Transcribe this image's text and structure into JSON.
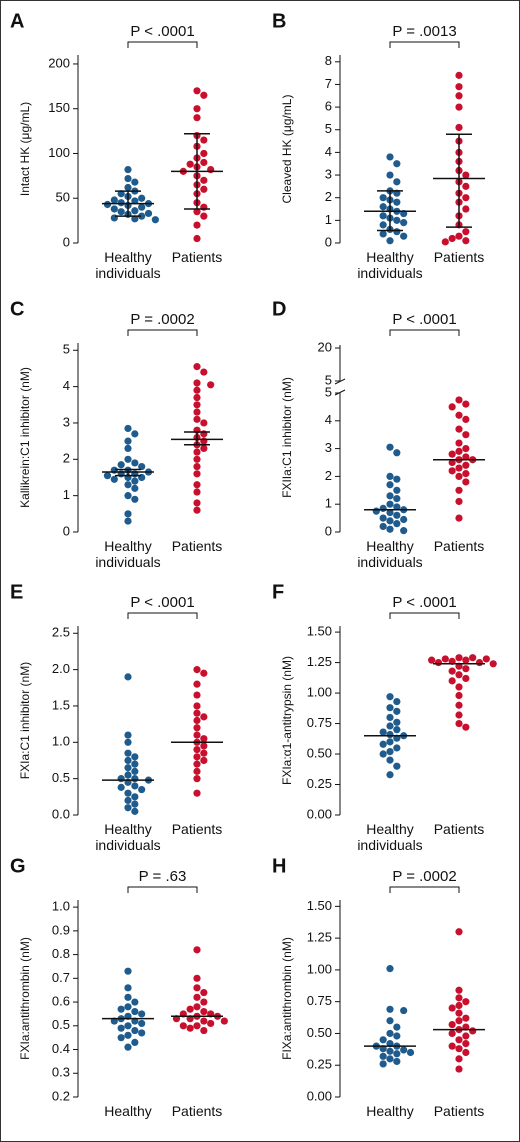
{
  "chart_data": [
    {
      "type": "dot",
      "panel": "A",
      "ylabel": "Intact HK (μg/mL)",
      "annotation": "P < .0001",
      "ylim": [
        0,
        210
      ],
      "yticks": [
        0,
        50,
        100,
        150,
        200
      ],
      "groups": [
        {
          "name": "Healthy individuals",
          "color": "#1f5b8c",
          "values": [
            82,
            72,
            68,
            62,
            58,
            55,
            52,
            50,
            48,
            47,
            45,
            44,
            43,
            42,
            40,
            38,
            36,
            35,
            33,
            32,
            30,
            28,
            27,
            26
          ],
          "center": 44,
          "whisker": [
            30,
            58
          ]
        },
        {
          "name": "Patients",
          "color": "#c8102e",
          "values": [
            170,
            165,
            150,
            140,
            120,
            115,
            108,
            100,
            95,
            90,
            88,
            85,
            82,
            80,
            75,
            70,
            65,
            60,
            55,
            45,
            40,
            35,
            30,
            20,
            5
          ],
          "center": 80,
          "whisker": [
            38,
            122
          ]
        }
      ]
    },
    {
      "type": "dot",
      "panel": "B",
      "ylabel": "Cleaved HK (μg/mL)",
      "annotation": "P = .0013",
      "ylim": [
        0,
        8.3
      ],
      "yticks": [
        0,
        1,
        2,
        3,
        4,
        5,
        6,
        7,
        8
      ],
      "groups": [
        {
          "name": "Healthy individuals",
          "color": "#1f5b8c",
          "values": [
            3.8,
            3.5,
            3.0,
            2.7,
            2.3,
            2.2,
            2.0,
            1.9,
            1.8,
            1.6,
            1.5,
            1.4,
            1.3,
            1.2,
            1.1,
            1.0,
            0.9,
            0.8,
            0.6,
            0.5,
            0.4,
            0.3,
            0.1
          ],
          "center": 1.4,
          "whisker": [
            0.55,
            2.3
          ]
        },
        {
          "name": "Patients",
          "color": "#c8102e",
          "values": [
            7.4,
            6.9,
            6.5,
            6.0,
            5.1,
            4.5,
            4.0,
            3.6,
            3.2,
            3.0,
            2.7,
            2.5,
            2.2,
            2.0,
            1.8,
            1.5,
            1.2,
            0.8,
            0.5,
            0.3,
            0.2,
            0.1,
            0.05
          ],
          "center": 2.85,
          "whisker": [
            0.7,
            4.8
          ]
        }
      ]
    },
    {
      "type": "dot",
      "panel": "C",
      "ylabel": "Kallikrein:C1 inhibitor (nM)",
      "annotation": "P = .0002",
      "ylim": [
        0,
        5.2
      ],
      "yticks": [
        0,
        1,
        2,
        3,
        4,
        5
      ],
      "groups": [
        {
          "name": "Healthy individuals",
          "color": "#1f5b8c",
          "values": [
            2.85,
            2.7,
            2.5,
            2.3,
            2.0,
            1.9,
            1.85,
            1.8,
            1.7,
            1.7,
            1.65,
            1.6,
            1.6,
            1.55,
            1.5,
            1.5,
            1.45,
            1.4,
            1.3,
            1.2,
            1.0,
            0.9,
            0.5,
            0.3
          ],
          "center": 1.65,
          "whisker": [
            1.55,
            1.72
          ]
        },
        {
          "name": "Patients",
          "color": "#c8102e",
          "values": [
            4.55,
            4.4,
            4.1,
            4.05,
            3.9,
            3.7,
            3.5,
            3.3,
            3.1,
            3.0,
            2.8,
            2.7,
            2.6,
            2.5,
            2.4,
            2.3,
            2.2,
            2.0,
            1.8,
            1.6,
            1.3,
            1.1,
            0.8,
            0.6
          ],
          "center": 2.55,
          "whisker": [
            2.4,
            2.75
          ]
        }
      ]
    },
    {
      "type": "dot",
      "panel": "D",
      "ylabel": "FXIIa:C1 inhibitor (nM)",
      "annotation": "P < .0001",
      "ylim": [
        0,
        5
      ],
      "yticks": [
        0,
        1,
        2,
        3,
        4,
        5
      ],
      "upper_ylim": [
        5,
        20
      ],
      "upper_yticks": [
        5,
        20
      ],
      "groups": [
        {
          "name": "Healthy individuals",
          "color": "#1f5b8c",
          "values": [
            3.05,
            2.85,
            2.0,
            1.9,
            1.7,
            1.5,
            1.3,
            1.2,
            1.0,
            0.9,
            0.85,
            0.8,
            0.75,
            0.7,
            0.6,
            0.5,
            0.45,
            0.4,
            0.3,
            0.2,
            0.1,
            0.05
          ],
          "center": 0.8
        },
        {
          "name": "Patients",
          "color": "#c8102e",
          "values": [
            4.75,
            4.6,
            4.5,
            4.2,
            4.05,
            3.7,
            3.5,
            3.2,
            3.0,
            2.9,
            2.8,
            2.7,
            2.6,
            2.6,
            2.5,
            2.4,
            2.3,
            2.2,
            2.1,
            2.0,
            1.8,
            1.5,
            1.1,
            0.5
          ],
          "center": 2.6
        }
      ]
    },
    {
      "type": "dot",
      "panel": "E",
      "ylabel": "FXIa:C1 inhibitor (nM)",
      "annotation": "P < .0001",
      "ylim": [
        0,
        2.6
      ],
      "yticks": [
        {
          "value": 0,
          "label": "0.0"
        },
        {
          "value": 0.5,
          "label": "0.5"
        },
        {
          "value": 1,
          "label": "1.0"
        },
        {
          "value": 1.5,
          "label": "1.5"
        },
        {
          "value": 2,
          "label": "2.0"
        },
        {
          "value": 2.5,
          "label": "2.5"
        }
      ],
      "groups": [
        {
          "name": "Healthy individuals",
          "color": "#1f5b8c",
          "values": [
            1.9,
            1.1,
            1.0,
            0.85,
            0.8,
            0.75,
            0.7,
            0.65,
            0.6,
            0.55,
            0.5,
            0.5,
            0.48,
            0.45,
            0.4,
            0.38,
            0.35,
            0.3,
            0.25,
            0.2,
            0.15,
            0.1,
            0.05
          ],
          "center": 0.48
        },
        {
          "name": "Patients",
          "color": "#c8102e",
          "values": [
            2.0,
            1.95,
            1.8,
            1.65,
            1.5,
            1.4,
            1.35,
            1.3,
            1.2,
            1.1,
            1.05,
            1.0,
            0.95,
            0.9,
            0.85,
            0.8,
            0.75,
            0.7,
            0.6,
            0.5,
            0.3
          ],
          "center": 1.0
        }
      ]
    },
    {
      "type": "dot",
      "panel": "F",
      "ylabel": "FXIa:α1-antitrypsin (nM)",
      "annotation": "P < .0001",
      "ylim": [
        0,
        1.55
      ],
      "yticks": [
        {
          "value": 0,
          "label": "0.00"
        },
        {
          "value": 0.25,
          "label": "0.25"
        },
        {
          "value": 0.5,
          "label": "0.50"
        },
        {
          "value": 0.75,
          "label": "0.75"
        },
        {
          "value": 1,
          "label": "1.00"
        },
        {
          "value": 1.25,
          "label": "1.25"
        },
        {
          "value": 1.5,
          "label": "1.50"
        }
      ],
      "groups": [
        {
          "name": "Healthy individuals",
          "color": "#1f5b8c",
          "values": [
            0.97,
            0.93,
            0.88,
            0.85,
            0.8,
            0.76,
            0.73,
            0.7,
            0.68,
            0.66,
            0.65,
            0.63,
            0.6,
            0.58,
            0.55,
            0.52,
            0.5,
            0.45,
            0.4,
            0.33
          ],
          "center": 0.65
        },
        {
          "name": "Patients",
          "color": "#c8102e",
          "values": [
            1.29,
            1.29,
            1.28,
            1.28,
            1.27,
            1.27,
            1.26,
            1.25,
            1.25,
            1.24,
            1.22,
            1.2,
            1.18,
            1.15,
            1.12,
            1.1,
            1.05,
            0.98,
            0.9,
            0.82,
            0.75,
            0.72
          ],
          "center": 1.24
        }
      ]
    },
    {
      "type": "dot",
      "panel": "G",
      "ylabel": "FXIa:antithrombin (nM)",
      "annotation": "P = .63",
      "ylim": [
        0.2,
        1.03
      ],
      "yticks": [
        0.2,
        0.3,
        0.4,
        0.5,
        0.6,
        0.7,
        0.8,
        0.9,
        {
          "value": 1,
          "label": "1.0"
        }
      ],
      "groups": [
        {
          "name": "Healthy",
          "color": "#1f5b8c",
          "values": [
            0.73,
            0.66,
            0.62,
            0.6,
            0.58,
            0.57,
            0.56,
            0.55,
            0.54,
            0.53,
            0.52,
            0.52,
            0.51,
            0.5,
            0.49,
            0.48,
            0.47,
            0.46,
            0.45,
            0.43,
            0.41
          ],
          "center": 0.53
        },
        {
          "name": "Patients",
          "color": "#c8102e",
          "values": [
            0.82,
            0.7,
            0.66,
            0.64,
            0.62,
            0.6,
            0.58,
            0.57,
            0.56,
            0.55,
            0.55,
            0.54,
            0.54,
            0.53,
            0.53,
            0.52,
            0.52,
            0.51,
            0.5,
            0.5,
            0.49,
            0.48
          ],
          "center": 0.54
        }
      ]
    },
    {
      "type": "dot",
      "panel": "H",
      "ylabel": "FIXa:antithrombin (nM)",
      "annotation": "P = .0002",
      "ylim": [
        0,
        1.55
      ],
      "yticks": [
        {
          "value": 0,
          "label": "0.00"
        },
        {
          "value": 0.25,
          "label": "0.25"
        },
        {
          "value": 0.5,
          "label": "0.50"
        },
        {
          "value": 0.75,
          "label": "0.75"
        },
        {
          "value": 1,
          "label": "1.00"
        },
        {
          "value": 1.25,
          "label": "1.25"
        },
        {
          "value": 1.5,
          "label": "1.50"
        }
      ],
      "groups": [
        {
          "name": "Healthy",
          "color": "#1f5b8c",
          "values": [
            1.01,
            0.69,
            0.68,
            0.6,
            0.55,
            0.5,
            0.48,
            0.45,
            0.42,
            0.4,
            0.4,
            0.38,
            0.37,
            0.36,
            0.35,
            0.34,
            0.32,
            0.3,
            0.28,
            0.26
          ],
          "center": 0.4
        },
        {
          "name": "Patients",
          "color": "#c8102e",
          "values": [
            1.3,
            0.84,
            0.78,
            0.75,
            0.72,
            0.7,
            0.66,
            0.62,
            0.6,
            0.57,
            0.55,
            0.53,
            0.52,
            0.5,
            0.48,
            0.45,
            0.42,
            0.4,
            0.38,
            0.35,
            0.3,
            0.22
          ],
          "center": 0.53
        }
      ]
    }
  ]
}
